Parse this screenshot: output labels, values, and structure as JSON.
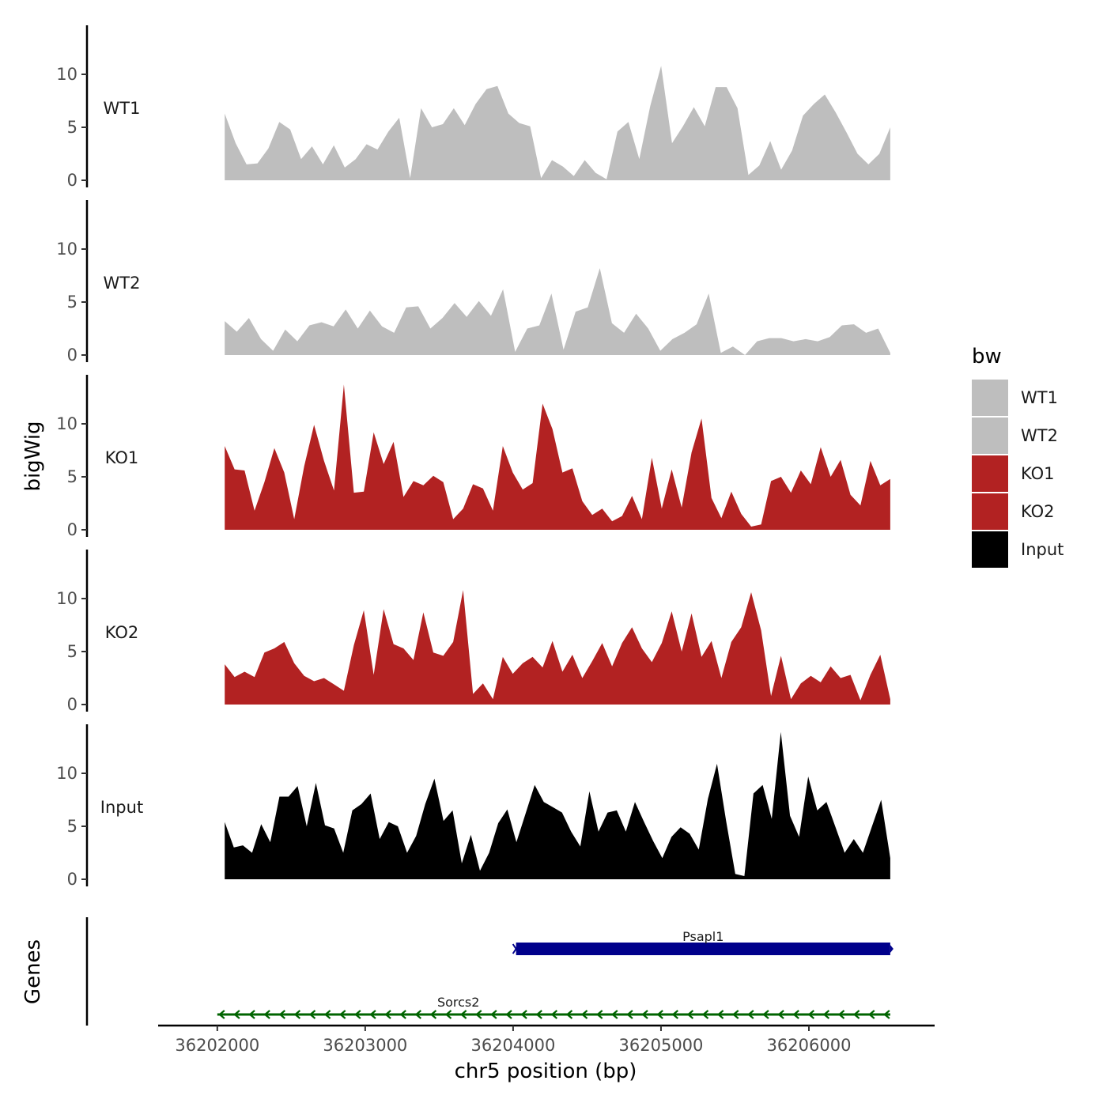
{
  "chart_data": {
    "type": "area",
    "xlabel": "chr5 position (bp)",
    "ylabel": "bigWig",
    "genes_axis_label": "Genes",
    "xlim": [
      36201600,
      36206850
    ],
    "data_xrange": [
      36202050,
      36206550
    ],
    "x_ticks": [
      36202000,
      36203000,
      36204000,
      36205000,
      36206000
    ],
    "x_tick_labels": [
      "36202000",
      "36203000",
      "36204000",
      "36205000",
      "36206000"
    ],
    "ylim": [
      0,
      14.5
    ],
    "y_ticks": [
      0,
      5,
      10
    ],
    "y_tick_labels": [
      "0",
      "5",
      "10"
    ],
    "legend": {
      "title": "bw",
      "entries": [
        {
          "label": "WT1",
          "color": "#bebebe"
        },
        {
          "label": "WT2",
          "color": "#bebebe"
        },
        {
          "label": "KO1",
          "color": "#b22222"
        },
        {
          "label": "KO2",
          "color": "#b22222"
        },
        {
          "label": "Input",
          "color": "#000000"
        }
      ]
    },
    "series": [
      {
        "name": "WT1",
        "color": "#bebebe",
        "values": [
          6.3,
          3.5,
          1.5,
          1.6,
          3.0,
          5.5,
          4.8,
          2.0,
          3.2,
          1.5,
          3.3,
          1.2,
          2.0,
          3.4,
          2.9,
          4.6,
          5.9,
          0.2,
          6.8,
          5.0,
          5.3,
          6.8,
          5.2,
          7.2,
          8.6,
          8.9,
          6.3,
          5.4,
          5.1,
          0.2,
          1.9,
          1.3,
          0.4,
          1.9,
          0.7,
          0.1,
          4.6,
          5.5,
          2.0,
          7.0,
          10.8,
          3.5,
          5.1,
          6.9,
          5.1,
          8.8,
          8.8,
          6.8,
          0.5,
          1.4,
          3.7,
          1.0,
          2.8,
          6.1,
          7.2,
          8.1,
          6.4,
          4.5,
          2.5,
          1.5,
          2.5,
          5.0
        ]
      },
      {
        "name": "WT2",
        "color": "#bebebe",
        "values": [
          3.2,
          2.2,
          3.5,
          1.5,
          0.4,
          2.4,
          1.3,
          2.8,
          3.1,
          2.7,
          4.3,
          2.5,
          4.2,
          2.7,
          2.1,
          4.5,
          4.6,
          2.5,
          3.5,
          4.9,
          3.6,
          5.1,
          3.7,
          6.2,
          0.3,
          2.5,
          2.8,
          5.8,
          0.5,
          4.1,
          4.5,
          8.2,
          3.0,
          2.1,
          3.9,
          2.5,
          0.4,
          1.5,
          2.1,
          2.9,
          5.8,
          0.2,
          0.8,
          0.0,
          1.3,
          1.6,
          1.6,
          1.3,
          1.5,
          1.3,
          1.7,
          2.8,
          2.9,
          2.1,
          2.5,
          0.2
        ]
      },
      {
        "name": "KO1",
        "color": "#b22222",
        "values": [
          7.9,
          5.7,
          5.6,
          1.8,
          4.5,
          7.7,
          5.4,
          1.0,
          6.0,
          9.9,
          6.5,
          3.7,
          13.7,
          3.5,
          3.6,
          9.2,
          6.2,
          8.3,
          3.1,
          4.6,
          4.2,
          5.1,
          4.5,
          1.0,
          2.0,
          4.3,
          3.9,
          1.8,
          7.9,
          5.4,
          3.8,
          4.4,
          11.9,
          9.5,
          5.4,
          5.8,
          2.7,
          1.4,
          2.0,
          0.8,
          1.3,
          3.2,
          1.0,
          6.8,
          2.0,
          5.7,
          2.1,
          7.3,
          10.5,
          3.0,
          1.1,
          3.6,
          1.5,
          0.3,
          0.5,
          4.6,
          5.0,
          3.5,
          5.6,
          4.3,
          7.8,
          5.0,
          6.6,
          3.3,
          2.3,
          6.5,
          4.2,
          4.8
        ]
      },
      {
        "name": "KO2",
        "color": "#b22222",
        "values": [
          3.8,
          2.6,
          3.1,
          2.6,
          4.9,
          5.3,
          5.9,
          3.9,
          2.7,
          2.2,
          2.5,
          1.9,
          1.3,
          5.6,
          8.9,
          2.8,
          9.0,
          5.7,
          5.3,
          4.2,
          8.7,
          4.9,
          4.6,
          5.9,
          10.8,
          1.0,
          2.0,
          0.5,
          4.5,
          2.9,
          3.9,
          4.5,
          3.5,
          6.0,
          3.1,
          4.7,
          2.5,
          4.1,
          5.8,
          3.6,
          5.8,
          7.3,
          5.3,
          4.0,
          5.8,
          8.8,
          5.0,
          8.6,
          4.5,
          6.0,
          2.5,
          5.9,
          7.3,
          10.6,
          7.0,
          0.8,
          4.6,
          0.5,
          2.0,
          2.7,
          2.1,
          3.6,
          2.5,
          2.8,
          0.4,
          2.8,
          4.7,
          0.5
        ]
      },
      {
        "name": "Input",
        "color": "#000000",
        "values": [
          5.4,
          3.0,
          3.2,
          2.5,
          5.2,
          3.5,
          7.8,
          7.8,
          8.8,
          5.0,
          9.1,
          5.1,
          4.8,
          2.5,
          6.5,
          7.1,
          8.1,
          3.8,
          5.4,
          5.0,
          2.5,
          4.1,
          7.1,
          9.5,
          5.5,
          6.5,
          1.5,
          4.2,
          0.8,
          2.5,
          5.3,
          6.6,
          3.5,
          6.2,
          8.9,
          7.3,
          6.8,
          6.3,
          4.5,
          3.1,
          8.3,
          4.5,
          6.3,
          6.5,
          4.5,
          7.3,
          5.4,
          3.6,
          2.0,
          4.0,
          4.9,
          4.3,
          2.8,
          7.6,
          10.9,
          5.5,
          0.5,
          0.3,
          8.1,
          8.9,
          5.7,
          13.9,
          6.0,
          4.0,
          9.7,
          6.5,
          7.3,
          4.9,
          2.5,
          3.8,
          2.5,
          5.0,
          7.5,
          2.0
        ]
      }
    ],
    "genes": [
      {
        "name": "Psapl1",
        "start": 36204020,
        "end": 36206550,
        "strand": "+",
        "color": "#00008b"
      },
      {
        "name": "Sorcs2",
        "start": 36202000,
        "end": 36206550,
        "strand": "-",
        "color": "#006400"
      }
    ]
  }
}
